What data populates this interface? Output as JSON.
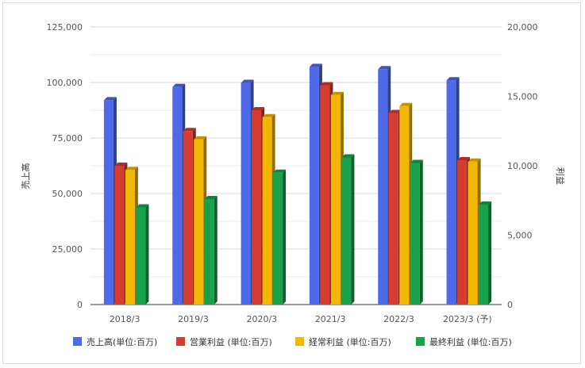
{
  "chart_data": {
    "type": "bar",
    "categories": [
      "2018/3",
      "2019/3",
      "2020/3",
      "2021/3",
      "2022/3",
      "2023/3 (予)"
    ],
    "left_axis": {
      "label": "売上高",
      "min": 0,
      "max": 125000,
      "ticks": [
        0,
        25000,
        50000,
        75000,
        100000,
        125000
      ],
      "tick_labels": [
        "0",
        "25,000",
        "50,000",
        "75,000",
        "100,000",
        "125,000"
      ]
    },
    "right_axis": {
      "label": "利益",
      "min": 0,
      "max": 20000,
      "ticks": [
        0,
        5000,
        10000,
        15000,
        20000
      ],
      "tick_labels": [
        "0",
        "5,000",
        "10,000",
        "15,000",
        "20,000"
      ]
    },
    "series": [
      {
        "name": "売上高(単位:百万)",
        "axis": "left",
        "color": "#4f6ae8",
        "values": [
          92000,
          98000,
          99800,
          107000,
          106000,
          101000
        ]
      },
      {
        "name": "営業利益 (単位:百万)",
        "axis": "right",
        "color": "#d63c2f",
        "values": [
          10000,
          12500,
          14000,
          15800,
          13800,
          10400
        ]
      },
      {
        "name": "経常利益 (単位:百万)",
        "axis": "right",
        "color": "#f2b705",
        "values": [
          9700,
          11900,
          13500,
          15100,
          14300,
          10300
        ]
      },
      {
        "name": "最終利益 (単位:百万)",
        "axis": "right",
        "color": "#18a24c",
        "values": [
          7000,
          7600,
          9500,
          10600,
          10200,
          7200
        ]
      }
    ],
    "grid": true,
    "legend_position": "bottom"
  }
}
